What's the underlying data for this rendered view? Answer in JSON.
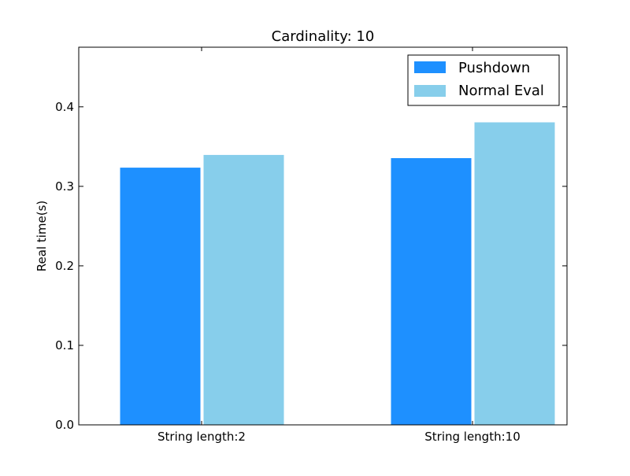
{
  "chart_data": {
    "type": "bar",
    "title": "Cardinality: 10",
    "xlabel": "",
    "ylabel": "Real time(s)",
    "categories": [
      "String length:2",
      "String length:10"
    ],
    "series": [
      {
        "name": "Pushdown",
        "values": [
          0.324,
          0.336
        ],
        "color": "#1e90ff"
      },
      {
        "name": "Normal Eval",
        "values": [
          0.34,
          0.381
        ],
        "color": "#87ceeb"
      }
    ],
    "ylim": [
      0,
      0.475
    ],
    "yticks": [
      "0.0",
      "0.1",
      "0.2",
      "0.3",
      "0.4"
    ],
    "grid": false,
    "legend_position": "top-right"
  }
}
